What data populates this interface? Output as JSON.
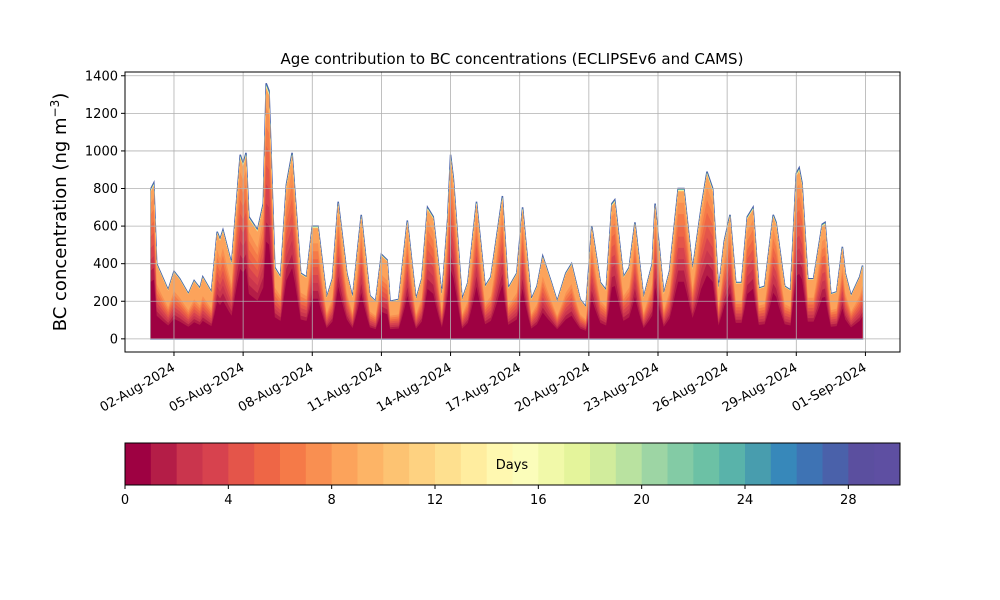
{
  "chart_data": {
    "type": "area",
    "stacked": true,
    "title": "Age contribution to BC concentrations (ECLIPSEv6 and CAMS)",
    "ylabel_main": "BC concentration (ng m",
    "ylabel_sup": "−3",
    "ylabel_close": ")",
    "ylim": [
      -70,
      1420
    ],
    "yticks": [
      0,
      200,
      400,
      600,
      800,
      1000,
      1200,
      1400
    ],
    "xlim": [
      "2024-07-30T21:00",
      "2024-09-02T12:00"
    ],
    "xticks": [
      "2024-08-02",
      "2024-08-05",
      "2024-08-08",
      "2024-08-11",
      "2024-08-14",
      "2024-08-17",
      "2024-08-20",
      "2024-08-23",
      "2024-08-26",
      "2024-08-29",
      "2024-09-01"
    ],
    "xtick_labels": [
      "02-Aug-2024",
      "05-Aug-2024",
      "08-Aug-2024",
      "11-Aug-2024",
      "14-Aug-2024",
      "17-Aug-2024",
      "20-Aug-2024",
      "23-Aug-2024",
      "26-Aug-2024",
      "29-Aug-2024",
      "01-Sep-2024"
    ],
    "grid": true,
    "time_range": [
      "2024-08-01T00:00",
      "2024-08-31T21:00"
    ],
    "total": [
      {
        "t": "2024-08-01T00:00",
        "v": 800
      },
      {
        "t": "2024-08-01T03:00",
        "v": 830
      },
      {
        "t": "2024-08-01T06:00",
        "v": 400
      },
      {
        "t": "2024-08-01T12:00",
        "v": 330
      },
      {
        "t": "2024-08-01T18:00",
        "v": 260
      },
      {
        "t": "2024-08-02T00:00",
        "v": 360
      },
      {
        "t": "2024-08-02T06:00",
        "v": 320
      },
      {
        "t": "2024-08-02T15:00",
        "v": 240
      },
      {
        "t": "2024-08-02T21:00",
        "v": 310
      },
      {
        "t": "2024-08-03T03:00",
        "v": 270
      },
      {
        "t": "2024-08-03T06:00",
        "v": 330
      },
      {
        "t": "2024-08-03T15:00",
        "v": 250
      },
      {
        "t": "2024-08-03T21:00",
        "v": 570
      },
      {
        "t": "2024-08-04T00:00",
        "v": 530
      },
      {
        "t": "2024-08-04T03:00",
        "v": 580
      },
      {
        "t": "2024-08-04T12:00",
        "v": 400
      },
      {
        "t": "2024-08-04T21:00",
        "v": 980
      },
      {
        "t": "2024-08-05T00:00",
        "v": 930
      },
      {
        "t": "2024-08-05T03:00",
        "v": 990
      },
      {
        "t": "2024-08-05T06:00",
        "v": 650
      },
      {
        "t": "2024-08-05T15:00",
        "v": 580
      },
      {
        "t": "2024-08-05T21:00",
        "v": 720
      },
      {
        "t": "2024-08-06T00:00",
        "v": 1360
      },
      {
        "t": "2024-08-06T03:00",
        "v": 1320
      },
      {
        "t": "2024-08-06T09:00",
        "v": 380
      },
      {
        "t": "2024-08-06T15:00",
        "v": 330
      },
      {
        "t": "2024-08-06T21:00",
        "v": 820
      },
      {
        "t": "2024-08-07T03:00",
        "v": 990
      },
      {
        "t": "2024-08-07T12:00",
        "v": 350
      },
      {
        "t": "2024-08-07T18:00",
        "v": 330
      },
      {
        "t": "2024-08-08T00:00",
        "v": 600
      },
      {
        "t": "2024-08-08T06:00",
        "v": 600
      },
      {
        "t": "2024-08-08T15:00",
        "v": 220
      },
      {
        "t": "2024-08-08T21:00",
        "v": 320
      },
      {
        "t": "2024-08-09T03:00",
        "v": 730
      },
      {
        "t": "2024-08-09T12:00",
        "v": 350
      },
      {
        "t": "2024-08-09T18:00",
        "v": 220
      },
      {
        "t": "2024-08-10T03:00",
        "v": 660
      },
      {
        "t": "2024-08-10T12:00",
        "v": 230
      },
      {
        "t": "2024-08-10T18:00",
        "v": 200
      },
      {
        "t": "2024-08-11T00:00",
        "v": 450
      },
      {
        "t": "2024-08-11T06:00",
        "v": 420
      },
      {
        "t": "2024-08-11T09:00",
        "v": 200
      },
      {
        "t": "2024-08-11T18:00",
        "v": 210
      },
      {
        "t": "2024-08-12T03:00",
        "v": 630
      },
      {
        "t": "2024-08-12T12:00",
        "v": 210
      },
      {
        "t": "2024-08-12T18:00",
        "v": 320
      },
      {
        "t": "2024-08-13T00:00",
        "v": 700
      },
      {
        "t": "2024-08-13T06:00",
        "v": 650
      },
      {
        "t": "2024-08-13T15:00",
        "v": 230
      },
      {
        "t": "2024-08-13T21:00",
        "v": 640
      },
      {
        "t": "2024-08-14T00:00",
        "v": 980
      },
      {
        "t": "2024-08-14T03:00",
        "v": 850
      },
      {
        "t": "2024-08-14T12:00",
        "v": 210
      },
      {
        "t": "2024-08-14T18:00",
        "v": 300
      },
      {
        "t": "2024-08-15T03:00",
        "v": 730
      },
      {
        "t": "2024-08-15T12:00",
        "v": 280
      },
      {
        "t": "2024-08-15T18:00",
        "v": 330
      },
      {
        "t": "2024-08-16T06:00",
        "v": 760
      },
      {
        "t": "2024-08-16T12:00",
        "v": 270
      },
      {
        "t": "2024-08-16T21:00",
        "v": 350
      },
      {
        "t": "2024-08-17T03:00",
        "v": 700
      },
      {
        "t": "2024-08-17T12:00",
        "v": 210
      },
      {
        "t": "2024-08-17T18:00",
        "v": 280
      },
      {
        "t": "2024-08-18T00:00",
        "v": 440
      },
      {
        "t": "2024-08-18T09:00",
        "v": 300
      },
      {
        "t": "2024-08-18T15:00",
        "v": 200
      },
      {
        "t": "2024-08-19T00:00",
        "v": 350
      },
      {
        "t": "2024-08-19T06:00",
        "v": 400
      },
      {
        "t": "2024-08-19T15:00",
        "v": 210
      },
      {
        "t": "2024-08-19T21:00",
        "v": 170
      },
      {
        "t": "2024-08-20T03:00",
        "v": 600
      },
      {
        "t": "2024-08-20T12:00",
        "v": 300
      },
      {
        "t": "2024-08-20T18:00",
        "v": 260
      },
      {
        "t": "2024-08-21T00:00",
        "v": 720
      },
      {
        "t": "2024-08-21T03:00",
        "v": 740
      },
      {
        "t": "2024-08-21T12:00",
        "v": 330
      },
      {
        "t": "2024-08-21T18:00",
        "v": 380
      },
      {
        "t": "2024-08-22T00:00",
        "v": 620
      },
      {
        "t": "2024-08-22T09:00",
        "v": 220
      },
      {
        "t": "2024-08-22T18:00",
        "v": 400
      },
      {
        "t": "2024-08-22T21:00",
        "v": 720
      },
      {
        "t": "2024-08-23T06:00",
        "v": 240
      },
      {
        "t": "2024-08-23T12:00",
        "v": 360
      },
      {
        "t": "2024-08-23T21:00",
        "v": 800
      },
      {
        "t": "2024-08-24T03:00",
        "v": 800
      },
      {
        "t": "2024-08-24T12:00",
        "v": 370
      },
      {
        "t": "2024-08-24T21:00",
        "v": 700
      },
      {
        "t": "2024-08-25T03:00",
        "v": 890
      },
      {
        "t": "2024-08-25T09:00",
        "v": 800
      },
      {
        "t": "2024-08-25T15:00",
        "v": 260
      },
      {
        "t": "2024-08-25T21:00",
        "v": 520
      },
      {
        "t": "2024-08-26T03:00",
        "v": 660
      },
      {
        "t": "2024-08-26T09:00",
        "v": 300
      },
      {
        "t": "2024-08-26T15:00",
        "v": 300
      },
      {
        "t": "2024-08-26T21:00",
        "v": 650
      },
      {
        "t": "2024-08-27T03:00",
        "v": 700
      },
      {
        "t": "2024-08-27T09:00",
        "v": 270
      },
      {
        "t": "2024-08-27T15:00",
        "v": 280
      },
      {
        "t": "2024-08-28T00:00",
        "v": 660
      },
      {
        "t": "2024-08-28T03:00",
        "v": 620
      },
      {
        "t": "2024-08-28T12:00",
        "v": 280
      },
      {
        "t": "2024-08-28T18:00",
        "v": 260
      },
      {
        "t": "2024-08-29T00:00",
        "v": 880
      },
      {
        "t": "2024-08-29T03:00",
        "v": 910
      },
      {
        "t": "2024-08-29T06:00",
        "v": 830
      },
      {
        "t": "2024-08-29T12:00",
        "v": 320
      },
      {
        "t": "2024-08-29T18:00",
        "v": 320
      },
      {
        "t": "2024-08-30T03:00",
        "v": 610
      },
      {
        "t": "2024-08-30T06:00",
        "v": 620
      },
      {
        "t": "2024-08-30T12:00",
        "v": 240
      },
      {
        "t": "2024-08-30T18:00",
        "v": 250
      },
      {
        "t": "2024-08-31T00:00",
        "v": 490
      },
      {
        "t": "2024-08-31T03:00",
        "v": 350
      },
      {
        "t": "2024-08-31T09:00",
        "v": 230
      },
      {
        "t": "2024-08-31T18:00",
        "v": 330
      },
      {
        "t": "2024-08-31T21:00",
        "v": 390
      }
    ],
    "colorbar": {
      "label": "Days",
      "range": [
        0,
        30
      ],
      "ticks": [
        0,
        4,
        8,
        12,
        16,
        20,
        24,
        28
      ],
      "colors": [
        "#9e0142",
        "#b41d47",
        "#ca354d",
        "#d7424e",
        "#e4554a",
        "#ee6646",
        "#f57a48",
        "#f98f51",
        "#fca35b",
        "#fdb466",
        "#fdc372",
        "#fed281",
        "#fee08f",
        "#ffed9f",
        "#fff8b0",
        "#fbfdba",
        "#f1f9a9",
        "#e4f49b",
        "#d1ec9c",
        "#b9e2a0",
        "#9dd5a4",
        "#83cba5",
        "#6cc1a5",
        "#59b3aa",
        "#489dae",
        "#3788ba",
        "#3e73b4",
        "#4a61aa",
        "#5b4f9f",
        "#5e4fa2"
      ]
    }
  }
}
